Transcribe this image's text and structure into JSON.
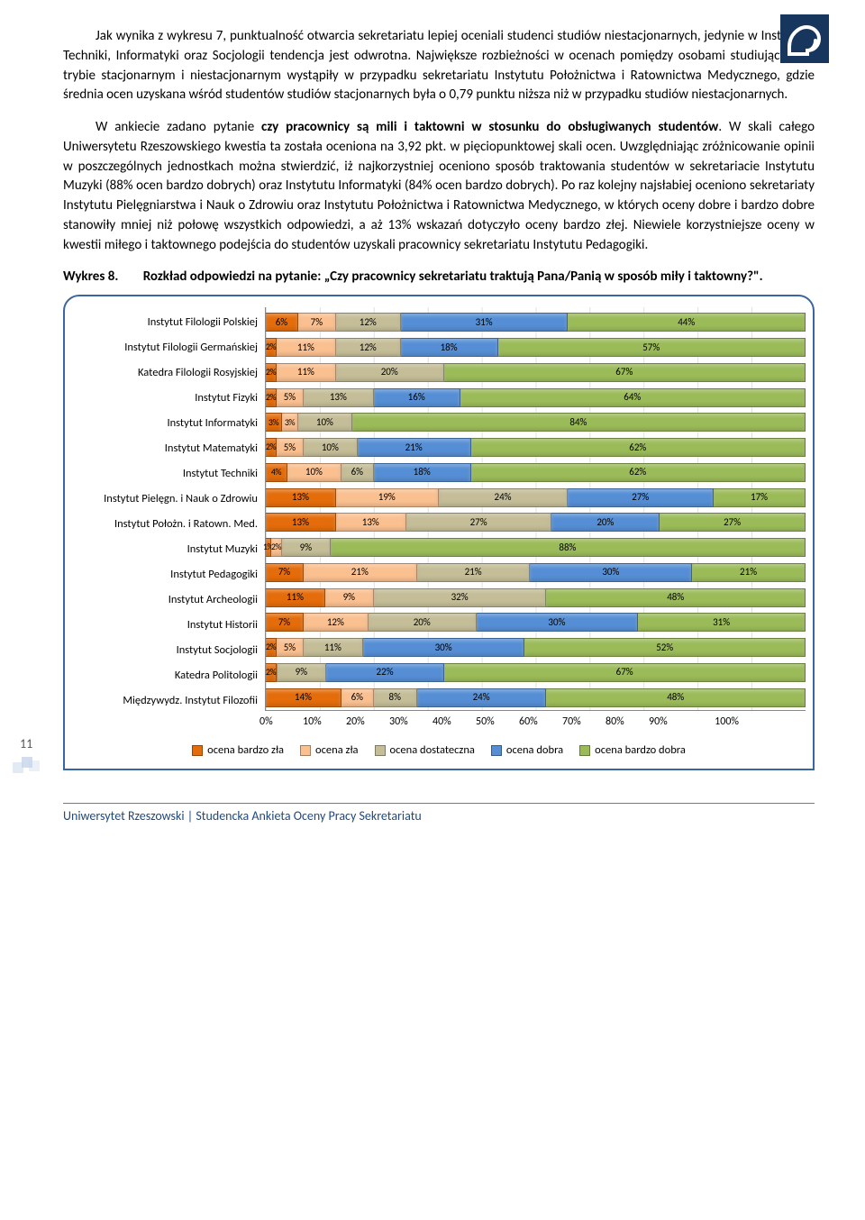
{
  "page_number": "11",
  "paragraphs": {
    "p1": "Jak wynika z wykresu 7, punktualność otwarcia sekretariatu lepiej oceniali studenci studiów niestacjonarnych, jedynie w Instytucie Techniki, Informatyki oraz Socjologii tendencja jest odwrotna. Największe rozbieżności w ocenach pomiędzy osobami studiującymi w trybie stacjonarnym i niestacjonarnym wystąpiły w przypadku sekretariatu Instytutu Położnictwa i Ratownictwa Medycznego, gdzie średnia ocen uzyskana wśród studentów studiów stacjonarnych była o 0,79 punktu niższa niż w przypadku studiów niestacjonarnych.",
    "p2_pre": "W ankiecie zadano pytanie ",
    "p2_bold": "czy pracownicy są mili i taktowni w stosunku do obsługiwanych studentów",
    "p2_post": ". W skali całego Uniwersytetu Rzeszowskiego kwestia ta została oceniona na 3,92 pkt.  w pięciopunktowej skali ocen. Uwzględniając zróżnicowanie opinii w poszczególnych jednostkach można stwierdzić, iż najkorzystniej oceniono sposób traktowania studentów w sekretariacie Instytutu Muzyki (88% ocen bardzo dobrych) oraz Instytutu Informatyki (84% ocen bardzo dobrych). Po raz kolejny najsłabiej oceniono sekretariaty Instytutu Pielęgniarstwa i Nauk o Zdrowiu oraz Instytutu Położnictwa i Ratownictwa Medycznego, w których oceny dobre i bardzo dobre stanowiły mniej niż połowę wszystkich odpowiedzi, a aż 13% wskazań dotyczyło oceny bardzo złej. Niewiele korzystniejsze oceny w kwestii miłego i taktownego podejścia do studentów uzyskali pracownicy sekretariatu Instytutu Pedagogiki."
  },
  "chart_caption": {
    "lead": "Wykres 8.",
    "rest": "Rozkład odpowiedzi na pytanie: „Czy pracownicy sekretariatu traktują Pana/Panią w sposób miły i taktowny?\"."
  },
  "chart": {
    "colors": {
      "bardzo_zla": "#e46c0a",
      "zla": "#fac090",
      "dostateczna": "#c4bd97",
      "dobra": "#558ed5",
      "bardzo_dobra": "#9bbb59"
    },
    "x_ticks": [
      "0%",
      "10%",
      "20%",
      "30%",
      "40%",
      "50%",
      "60%",
      "70%",
      "80%",
      "90%",
      "100%"
    ],
    "legend": [
      {
        "key": "bardzo_zla",
        "label": "ocena bardzo zła"
      },
      {
        "key": "zla",
        "label": "ocena zła"
      },
      {
        "key": "dostateczna",
        "label": "ocena dostateczna"
      },
      {
        "key": "dobra",
        "label": "ocena dobra"
      },
      {
        "key": "bardzo_dobra",
        "label": "ocena bardzo dobra"
      }
    ],
    "rows": [
      {
        "label": "Instytut Filologii Polskiej",
        "segments": [
          {
            "k": "bardzo_zla",
            "v": 6,
            "t": "6%"
          },
          {
            "k": "zla",
            "v": 7,
            "t": "7%"
          },
          {
            "k": "dostateczna",
            "v": 12,
            "t": "12%"
          },
          {
            "k": "dobra",
            "v": 31,
            "t": "31%"
          },
          {
            "k": "bardzo_dobra",
            "v": 44,
            "t": "44%"
          }
        ]
      },
      {
        "label": "Instytut Filologii Germańskiej",
        "segments": [
          {
            "k": "bardzo_zla",
            "v": 2,
            "t": "2%"
          },
          {
            "k": "zla",
            "v": 11,
            "t": "11%"
          },
          {
            "k": "dostateczna",
            "v": 12,
            "t": "12%"
          },
          {
            "k": "dobra",
            "v": 18,
            "t": "18%"
          },
          {
            "k": "bardzo_dobra",
            "v": 57,
            "t": "57%"
          }
        ]
      },
      {
        "label": "Katedra Filologii Rosyjskiej",
        "segments": [
          {
            "k": "bardzo_zla",
            "v": 2,
            "t": "2%"
          },
          {
            "k": "zla",
            "v": 11,
            "t": "11%"
          },
          {
            "k": "dostateczna",
            "v": 20,
            "t": "20%"
          },
          {
            "k": "bardzo_dobra",
            "v": 67,
            "t": "67%"
          }
        ]
      },
      {
        "label": "Instytut Fizyki",
        "segments": [
          {
            "k": "bardzo_zla",
            "v": 2,
            "t": "2%"
          },
          {
            "k": "zla",
            "v": 5,
            "t": "5%"
          },
          {
            "k": "dostateczna",
            "v": 13,
            "t": "13%"
          },
          {
            "k": "dobra",
            "v": 16,
            "t": "16%"
          },
          {
            "k": "bardzo_dobra",
            "v": 64,
            "t": "64%"
          }
        ]
      },
      {
        "label": "Instytut Informatyki",
        "segments": [
          {
            "k": "bardzo_zla",
            "v": 3,
            "t": "3%"
          },
          {
            "k": "zla",
            "v": 3,
            "t": "3%"
          },
          {
            "k": "dostateczna",
            "v": 10,
            "t": "10%"
          },
          {
            "k": "bardzo_dobra",
            "v": 84,
            "t": "84%"
          }
        ]
      },
      {
        "label": "Instytut Matematyki",
        "segments": [
          {
            "k": "bardzo_zla",
            "v": 2,
            "t": "2%"
          },
          {
            "k": "zla",
            "v": 5,
            "t": "5%"
          },
          {
            "k": "dostateczna",
            "v": 10,
            "t": "10%"
          },
          {
            "k": "dobra",
            "v": 21,
            "t": "21%"
          },
          {
            "k": "bardzo_dobra",
            "v": 62,
            "t": "62%"
          }
        ]
      },
      {
        "label": "Instytut Techniki",
        "segments": [
          {
            "k": "bardzo_zla",
            "v": 4,
            "t": "4%"
          },
          {
            "k": "zla",
            "v": 10,
            "t": "10%"
          },
          {
            "k": "dostateczna",
            "v": 6,
            "t": "6%"
          },
          {
            "k": "dobra",
            "v": 18,
            "t": "18%"
          },
          {
            "k": "bardzo_dobra",
            "v": 62,
            "t": "62%"
          }
        ]
      },
      {
        "label": "Instytut Pielęgn. i Nauk o Zdrowiu",
        "segments": [
          {
            "k": "bardzo_zla",
            "v": 13,
            "t": "13%"
          },
          {
            "k": "zla",
            "v": 19,
            "t": "19%"
          },
          {
            "k": "dostateczna",
            "v": 24,
            "t": "24%"
          },
          {
            "k": "dobra",
            "v": 27,
            "t": "27%"
          },
          {
            "k": "bardzo_dobra",
            "v": 17,
            "t": "17%"
          }
        ]
      },
      {
        "label": "Instytut Położn. i Ratown. Med.",
        "segments": [
          {
            "k": "bardzo_zla",
            "v": 13,
            "t": "13%"
          },
          {
            "k": "zla",
            "v": 13,
            "t": "13%"
          },
          {
            "k": "dostateczna",
            "v": 27,
            "t": "27%"
          },
          {
            "k": "dobra",
            "v": 20,
            "t": "20%"
          },
          {
            "k": "bardzo_dobra",
            "v": 27,
            "t": "27%"
          }
        ]
      },
      {
        "label": "Instytut Muzyki",
        "segments": [
          {
            "k": "bardzo_zla",
            "v": 1,
            "t": "1%"
          },
          {
            "k": "zla",
            "v": 2,
            "t": "2%"
          },
          {
            "k": "dostateczna",
            "v": 9,
            "t": "9%"
          },
          {
            "k": "bardzo_dobra",
            "v": 88,
            "t": "88%"
          }
        ]
      },
      {
        "label": "Instytut Pedagogiki",
        "segments": [
          {
            "k": "bardzo_zla",
            "v": 7,
            "t": "7%"
          },
          {
            "k": "zla",
            "v": 21,
            "t": "21%"
          },
          {
            "k": "dostateczna",
            "v": 21,
            "t": "21%"
          },
          {
            "k": "dobra",
            "v": 30,
            "t": "30%"
          },
          {
            "k": "bardzo_dobra",
            "v": 21,
            "t": "21%"
          }
        ]
      },
      {
        "label": "Instytut Archeologii",
        "segments": [
          {
            "k": "bardzo_zla",
            "v": 11,
            "t": "11%"
          },
          {
            "k": "zla",
            "v": 9,
            "t": "9%"
          },
          {
            "k": "dostateczna",
            "v": 32,
            "t": "32%"
          },
          {
            "k": "bardzo_dobra",
            "v": 48,
            "t": "48%"
          }
        ]
      },
      {
        "label": "Instytut Historii",
        "segments": [
          {
            "k": "bardzo_zla",
            "v": 7,
            "t": "7%"
          },
          {
            "k": "zla",
            "v": 12,
            "t": "12%"
          },
          {
            "k": "dostateczna",
            "v": 20,
            "t": "20%"
          },
          {
            "k": "dobra",
            "v": 30,
            "t": "30%"
          },
          {
            "k": "bardzo_dobra",
            "v": 31,
            "t": "31%"
          }
        ]
      },
      {
        "label": "Instytut Socjologii",
        "segments": [
          {
            "k": "bardzo_zla",
            "v": 2,
            "t": "2%"
          },
          {
            "k": "zla",
            "v": 5,
            "t": "5%"
          },
          {
            "k": "dostateczna",
            "v": 11,
            "t": "11%"
          },
          {
            "k": "dobra",
            "v": 30,
            "t": "30%"
          },
          {
            "k": "bardzo_dobra",
            "v": 52,
            "t": "52%"
          }
        ]
      },
      {
        "label": "Katedra Politologii",
        "segments": [
          {
            "k": "bardzo_zla",
            "v": 2,
            "t": "2%"
          },
          {
            "k": "zla",
            "v": 0,
            "t": "0%"
          },
          {
            "k": "dostateczna",
            "v": 9,
            "t": "9%"
          },
          {
            "k": "dobra",
            "v": 22,
            "t": "22%"
          },
          {
            "k": "bardzo_dobra",
            "v": 67,
            "t": "67%"
          }
        ]
      },
      {
        "label": "Międzywydz. Instytut Filozofii",
        "segments": [
          {
            "k": "bardzo_zla",
            "v": 14,
            "t": "14%"
          },
          {
            "k": "zla",
            "v": 6,
            "t": "6%"
          },
          {
            "k": "dostateczna",
            "v": 8,
            "t": "8%"
          },
          {
            "k": "dobra",
            "v": 24,
            "t": "24%"
          },
          {
            "k": "bardzo_dobra",
            "v": 48,
            "t": "48%"
          }
        ]
      }
    ]
  },
  "footer": "Uniwersytet Rzeszowski | Studencka Ankieta Oceny Pracy Sekretariatu"
}
